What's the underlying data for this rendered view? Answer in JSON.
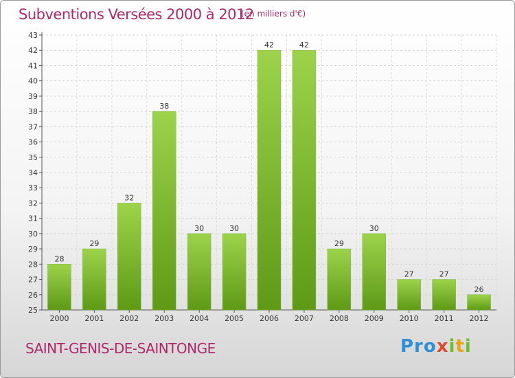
{
  "header": {
    "title": "Subventions Versées 2000 à 2012",
    "unit": "(en milliers d'€)"
  },
  "footer": {
    "city": "SAINT-GENIS-DE-SAINTONGE",
    "logo": "Proxiti"
  },
  "colors": {
    "accent": "#b0286a",
    "bar_top": "#9cd34a",
    "bar_bottom": "#5e9a16"
  },
  "chart_data": {
    "type": "bar",
    "title": "Subventions Versées 2000 à 2012",
    "subtitle": "(en milliers d'€)",
    "xlabel": "",
    "ylabel": "",
    "categories": [
      "2000",
      "2001",
      "2002",
      "2003",
      "2004",
      "2005",
      "2006",
      "2007",
      "2008",
      "2009",
      "2010",
      "2011",
      "2012"
    ],
    "values": [
      28,
      29,
      32,
      38,
      30,
      30,
      42,
      42,
      29,
      30,
      27,
      27,
      26
    ],
    "ylim": [
      25,
      43
    ],
    "yticks": [
      25,
      26,
      27,
      28,
      29,
      30,
      31,
      32,
      33,
      34,
      35,
      36,
      37,
      38,
      39,
      40,
      41,
      42,
      43
    ],
    "grid": true,
    "legend": "none"
  }
}
